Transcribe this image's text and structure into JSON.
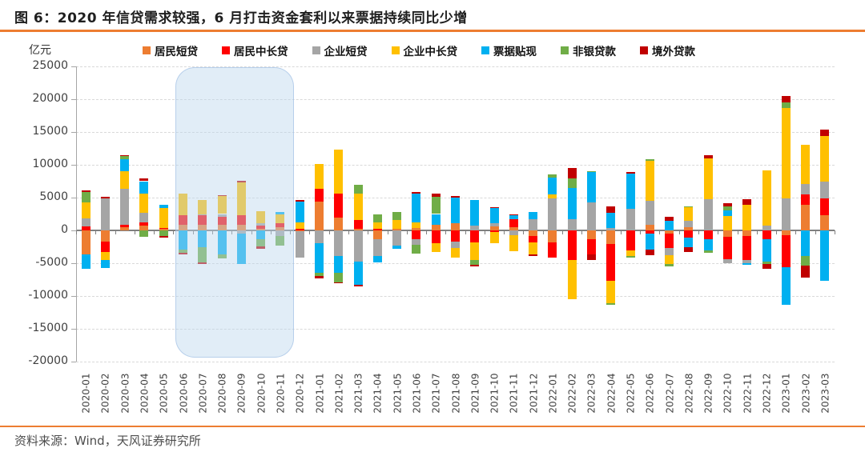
{
  "title": "图 6：2020 年信贷需求较强，6 月打击资金套利以来票据持续同比少增",
  "footer": {
    "source_label": "资料来源：Wind，天风证券研究所"
  },
  "colors": {
    "accent_rule": "#ED7D31",
    "grid": "#D9D9D9",
    "zero_line": "#808080",
    "axis_text": "#404040",
    "highlight_fill": "#BDD7EE",
    "highlight_border": "#9BBBE3"
  },
  "chart_data": {
    "type": "bar",
    "stacked": true,
    "title": "图 6：2020 年信贷需求较强，6 月打击资金套利以来票据持续同比少增",
    "unit_label": "亿元",
    "xlabel": "",
    "ylabel": "亿元",
    "ylim": [
      -20000,
      25000
    ],
    "ytick_step": 5000,
    "grid": true,
    "legend_position": "top",
    "categories": [
      "2020-01",
      "2020-02",
      "2020-03",
      "2020-04",
      "2020-05",
      "2020-06",
      "2020-07",
      "2020-08",
      "2020-09",
      "2020-10",
      "2020-11",
      "2020-12",
      "2021-01",
      "2021-02",
      "2021-03",
      "2021-04",
      "2021-05",
      "2021-06",
      "2021-07",
      "2021-08",
      "2021-09",
      "2021-10",
      "2021-11",
      "2021-12",
      "2022-01",
      "2022-02",
      "2022-03",
      "2022-04",
      "2022-05",
      "2022-06",
      "2022-07",
      "2022-08",
      "2022-09",
      "2022-10",
      "2022-11",
      "2022-12",
      "2023-01",
      "2023-02",
      "2023-03"
    ],
    "series": [
      {
        "name": "居民短贷",
        "color": "#ED7D31",
        "values": [
          -3700,
          -1650,
          500,
          700,
          250,
          900,
          800,
          900,
          900,
          280,
          480,
          -150,
          4400,
          2000,
          300,
          -1300,
          250,
          400,
          850,
          1100,
          0,
          600,
          480,
          -900,
          -1800,
          0,
          -1300,
          -2100,
          0,
          800,
          -500,
          480,
          0,
          -1000,
          -900,
          0,
          -700,
          3900,
          2280
        ]
      },
      {
        "name": "居民中长贷",
        "color": "#FF0000",
        "values": [
          600,
          -1600,
          400,
          500,
          100,
          1400,
          1500,
          1200,
          1400,
          480,
          600,
          240,
          1900,
          3600,
          1300,
          300,
          0,
          -1350,
          -1950,
          -1700,
          -1850,
          -200,
          1200,
          -900,
          -2300,
          -4500,
          -2300,
          -5600,
          -3100,
          -500,
          -2200,
          -1100,
          -1300,
          -3450,
          -3600,
          -1300,
          -4900,
          1600,
          2600
        ]
      },
      {
        "name": "企业短贷",
        "color": "#A5A5A5",
        "values": [
          1200,
          4900,
          5500,
          1500,
          0,
          0,
          100,
          400,
          -500,
          320,
          -800,
          -4000,
          -1900,
          -3900,
          -4700,
          -2600,
          -2300,
          -800,
          0,
          -1000,
          680,
          500,
          -700,
          1700,
          4900,
          1700,
          4300,
          350,
          3300,
          3750,
          -1100,
          1000,
          4750,
          -550,
          -480,
          700,
          4900,
          1600,
          2600
        ]
      },
      {
        "name": "企业中长贷",
        "color": "#FFC000",
        "values": [
          2500,
          -1300,
          2600,
          2900,
          3100,
          3300,
          2200,
          2700,
          5000,
          1800,
          1400,
          1000,
          3800,
          6700,
          4000,
          900,
          1300,
          800,
          -1400,
          -1450,
          -2700,
          -1800,
          -2500,
          -1850,
          600,
          -6000,
          0,
          -3400,
          -800,
          6000,
          -1300,
          2000,
          6250,
          2200,
          3900,
          8500,
          13700,
          5900,
          6900
        ]
      },
      {
        "name": "票据贴现",
        "color": "#00B0F0",
        "values": [
          -2100,
          -1200,
          1800,
          1900,
          500,
          -2900,
          -2500,
          -3700,
          -4650,
          -1400,
          280,
          3200,
          -4600,
          -2600,
          -3600,
          -1000,
          -500,
          4400,
          1650,
          3900,
          3900,
          2300,
          600,
          1150,
          2500,
          4800,
          4600,
          2300,
          5300,
          -2400,
          1500,
          -1500,
          -1800,
          800,
          -320,
          -3400,
          -5800,
          -3850,
          -7700
        ]
      },
      {
        "name": "非银贷款",
        "color": "#70AD47",
        "values": [
          1600,
          0,
          500,
          -1000,
          -900,
          -500,
          -2400,
          -600,
          0,
          -1000,
          -1500,
          0,
          -400,
          -1400,
          1400,
          1300,
          1200,
          -1400,
          2600,
          0,
          -700,
          0,
          0,
          0,
          500,
          1400,
          100,
          -200,
          -200,
          250,
          -400,
          150,
          -280,
          680,
          0,
          -400,
          900,
          -1500,
          0
        ]
      },
      {
        "name": "境外贷款",
        "color": "#C00000",
        "values": [
          250,
          200,
          150,
          400,
          -250,
          -300,
          -200,
          200,
          300,
          -400,
          0,
          200,
          -400,
          -200,
          -200,
          0,
          0,
          280,
          500,
          280,
          -200,
          150,
          200,
          -250,
          0,
          1600,
          -900,
          1000,
          280,
          -900,
          600,
          -700,
          480,
          520,
          800,
          -800,
          1000,
          -1800,
          1000
        ]
      }
    ],
    "highlight": {
      "from": "2020-06",
      "to": "2020-11"
    }
  }
}
